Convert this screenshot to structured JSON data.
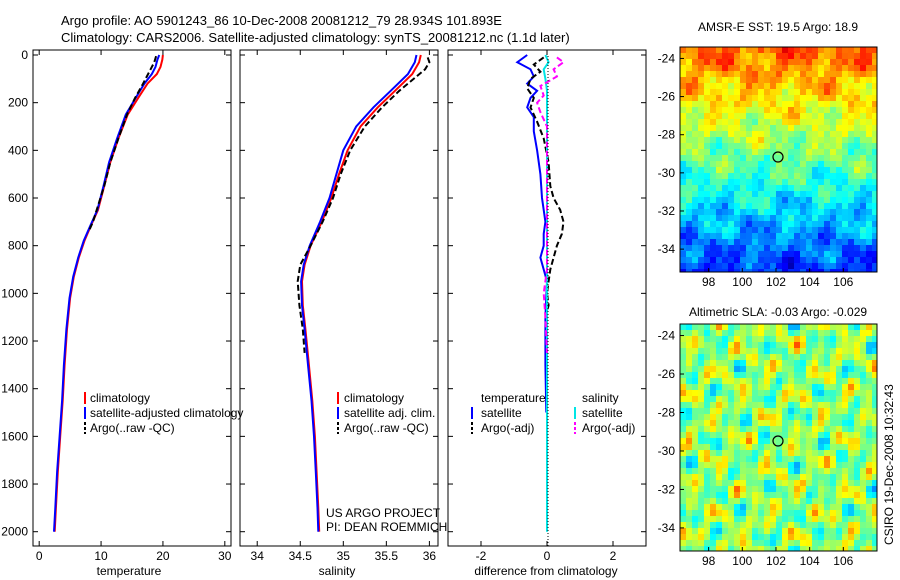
{
  "header": {
    "line1": "Argo profile: AO 5901243_86 10-Dec-2008 20081212_79 28.934S 101.893E",
    "line2": "Climatology: CARS2006. Satellite-adjusted climatology: synTS_20081212.nc (1.1d later)"
  },
  "colors": {
    "climatology": "#ff0000",
    "satellite": "#0000ff",
    "argo": "#000000",
    "salinity_satellite": "#00e5e5",
    "salinity_argo": "#ff00ff"
  },
  "chart_data": [
    {
      "type": "line",
      "xlabel": "temperature",
      "ylabel": "",
      "xlim": [
        -1,
        31
      ],
      "xticks": [
        0,
        10,
        20,
        30
      ],
      "ylim": [
        2060,
        0
      ],
      "yticks": [
        0,
        200,
        400,
        600,
        800,
        1000,
        1200,
        1400,
        1600,
        1800,
        2000
      ],
      "series": [
        {
          "name": "climatology",
          "color": "#ff0000",
          "style": "solid",
          "points": [
            [
              20,
              0
            ],
            [
              19.9,
              20
            ],
            [
              19.6,
              50
            ],
            [
              19.0,
              80
            ],
            [
              17.5,
              120
            ],
            [
              16.0,
              180
            ],
            [
              14.3,
              250
            ],
            [
              12.8,
              350
            ],
            [
              11.5,
              450
            ],
            [
              10.5,
              550
            ],
            [
              9.5,
              650
            ],
            [
              8.3,
              720
            ],
            [
              7.3,
              780
            ],
            [
              6.4,
              850
            ],
            [
              5.6,
              930
            ],
            [
              5.0,
              1020
            ],
            [
              4.5,
              1150
            ],
            [
              4.1,
              1300
            ],
            [
              3.8,
              1450
            ],
            [
              3.4,
              1600
            ],
            [
              3.0,
              1750
            ],
            [
              2.7,
              1900
            ],
            [
              2.5,
              2000
            ]
          ]
        },
        {
          "name": "satellite-adjusted climatology",
          "color": "#0000ff",
          "style": "solid",
          "points": [
            [
              19.4,
              0
            ],
            [
              19.1,
              20
            ],
            [
              18.8,
              50
            ],
            [
              18.2,
              80
            ],
            [
              17.0,
              120
            ],
            [
              15.6,
              180
            ],
            [
              14.0,
              250
            ],
            [
              12.6,
              350
            ],
            [
              11.3,
              450
            ],
            [
              10.4,
              550
            ],
            [
              9.4,
              650
            ],
            [
              8.2,
              720
            ],
            [
              7.2,
              780
            ],
            [
              6.3,
              850
            ],
            [
              5.5,
              930
            ],
            [
              4.9,
              1020
            ],
            [
              4.4,
              1150
            ],
            [
              4.0,
              1300
            ],
            [
              3.7,
              1450
            ],
            [
              3.3,
              1600
            ],
            [
              2.9,
              1750
            ],
            [
              2.6,
              1900
            ],
            [
              2.4,
              2000
            ]
          ]
        },
        {
          "name": "Argo(..raw -QC)",
          "color": "#000000",
          "style": "dash",
          "points": [
            [
              18.9,
              5
            ],
            [
              18.6,
              30
            ],
            [
              18.0,
              60
            ],
            [
              17.4,
              90
            ],
            [
              16.8,
              120
            ],
            [
              15.5,
              180
            ],
            [
              14.2,
              250
            ],
            [
              12.8,
              350
            ],
            [
              11.5,
              450
            ],
            [
              10.5,
              550
            ],
            [
              9.3,
              650
            ],
            [
              8.7,
              700
            ],
            [
              8.0,
              740
            ]
          ]
        }
      ],
      "legend": [
        "climatology",
        "satellite-adjusted climatology",
        "Argo(..raw -QC)"
      ]
    },
    {
      "type": "line",
      "xlabel": "salinity",
      "xlim": [
        33.8,
        36.1
      ],
      "xticks": [
        34,
        34.5,
        35,
        35.5,
        36
      ],
      "ylim": [
        2060,
        0
      ],
      "series": [
        {
          "name": "climatology",
          "color": "#ff0000",
          "style": "solid",
          "points": [
            [
              35.9,
              0
            ],
            [
              35.88,
              30
            ],
            [
              35.8,
              80
            ],
            [
              35.6,
              150
            ],
            [
              35.4,
              220
            ],
            [
              35.2,
              300
            ],
            [
              35.05,
              400
            ],
            [
              34.95,
              500
            ],
            [
              34.86,
              600
            ],
            [
              34.75,
              700
            ],
            [
              34.62,
              800
            ],
            [
              34.55,
              880
            ],
            [
              34.52,
              950
            ],
            [
              34.53,
              1050
            ],
            [
              34.56,
              1150
            ],
            [
              34.6,
              1300
            ],
            [
              34.64,
              1450
            ],
            [
              34.67,
              1600
            ],
            [
              34.69,
              1750
            ],
            [
              34.71,
              1900
            ],
            [
              34.72,
              2000
            ]
          ]
        },
        {
          "name": "satellite adj. clim.",
          "color": "#0000ff",
          "style": "solid",
          "points": [
            [
              35.85,
              0
            ],
            [
              35.83,
              30
            ],
            [
              35.75,
              80
            ],
            [
              35.55,
              150
            ],
            [
              35.35,
              220
            ],
            [
              35.15,
              300
            ],
            [
              35.0,
              400
            ],
            [
              34.92,
              500
            ],
            [
              34.84,
              600
            ],
            [
              34.73,
              700
            ],
            [
              34.61,
              800
            ],
            [
              34.54,
              880
            ],
            [
              34.51,
              950
            ],
            [
              34.52,
              1050
            ],
            [
              34.55,
              1150
            ],
            [
              34.59,
              1300
            ],
            [
              34.63,
              1450
            ],
            [
              34.66,
              1600
            ],
            [
              34.68,
              1750
            ],
            [
              34.7,
              1900
            ],
            [
              34.71,
              2000
            ]
          ]
        },
        {
          "name": "Argo(..raw -QC)",
          "color": "#000000",
          "style": "dash",
          "points": [
            [
              35.98,
              10
            ],
            [
              36.0,
              30
            ],
            [
              35.95,
              60
            ],
            [
              35.85,
              90
            ],
            [
              35.65,
              150
            ],
            [
              35.45,
              220
            ],
            [
              35.25,
              300
            ],
            [
              35.08,
              400
            ],
            [
              34.97,
              500
            ],
            [
              34.88,
              600
            ],
            [
              34.76,
              700
            ],
            [
              34.62,
              800
            ],
            [
              34.5,
              880
            ],
            [
              34.47,
              950
            ],
            [
              34.49,
              1050
            ],
            [
              34.53,
              1150
            ],
            [
              34.55,
              1250
            ]
          ]
        }
      ],
      "legend": [
        "climatology",
        "satellite adj. clim.",
        "Argo(..raw -QC)"
      ],
      "annotation": [
        "US ARGO PROJECT",
        "PI: DEAN ROEMMICH"
      ]
    },
    {
      "type": "line",
      "xlabel": "difference from climatology",
      "xlim": [
        -3,
        3
      ],
      "xticks": [
        -2,
        0,
        2
      ],
      "ylim": [
        2060,
        0
      ],
      "series": [
        {
          "name": "temperature satellite",
          "color": "#0000ff",
          "style": "solid",
          "points": [
            [
              -0.6,
              0
            ],
            [
              -0.9,
              30
            ],
            [
              -0.5,
              60
            ],
            [
              -0.4,
              90
            ],
            [
              -0.6,
              120
            ],
            [
              -0.3,
              150
            ],
            [
              -0.5,
              180
            ],
            [
              -0.6,
              220
            ],
            [
              -0.4,
              260
            ],
            [
              -0.4,
              320
            ],
            [
              -0.3,
              400
            ],
            [
              -0.2,
              500
            ],
            [
              -0.15,
              600
            ],
            [
              -0.1,
              650
            ],
            [
              -0.05,
              700
            ],
            [
              -0.1,
              750
            ],
            [
              -0.1,
              800
            ],
            [
              -0.2,
              850
            ],
            [
              -0.1,
              900
            ],
            [
              0,
              950
            ],
            [
              -0.05,
              1100
            ],
            [
              -0.05,
              1300
            ],
            [
              -0.02,
              1500
            ]
          ]
        },
        {
          "name": "temperature Argo(-adj)",
          "color": "#000000",
          "style": "dash",
          "points": [
            [
              -0.1,
              10
            ],
            [
              -0.4,
              40
            ],
            [
              -0.2,
              70
            ],
            [
              -0.5,
              100
            ],
            [
              -0.6,
              140
            ],
            [
              -0.4,
              180
            ],
            [
              -0.5,
              220
            ],
            [
              -0.3,
              280
            ],
            [
              -0.1,
              350
            ],
            [
              0.05,
              450
            ],
            [
              0.1,
              550
            ],
            [
              0.2,
              600
            ],
            [
              0.4,
              650
            ],
            [
              0.5,
              700
            ],
            [
              0.45,
              750
            ],
            [
              0.3,
              800
            ],
            [
              0.2,
              850
            ],
            [
              0.1,
              900
            ],
            [
              0.05,
              950
            ],
            [
              0.0,
              1000
            ],
            [
              0.05,
              1050
            ],
            [
              -0.05,
              1100
            ]
          ]
        },
        {
          "name": "salinity satellite",
          "color": "#00e5e5",
          "style": "solid",
          "points": [
            [
              -0.05,
              0
            ],
            [
              0.05,
              30
            ],
            [
              -0.1,
              60
            ],
            [
              -0.05,
              100
            ],
            [
              0.0,
              150
            ],
            [
              0.0,
              300
            ],
            [
              0.0,
              600
            ],
            [
              0.0,
              900
            ],
            [
              0.0,
              1200
            ],
            [
              0.0,
              1500
            ],
            [
              0.0,
              1800
            ],
            [
              0.0,
              2000
            ]
          ]
        },
        {
          "name": "salinity Argo(-adj)",
          "color": "#ff00ff",
          "style": "dash",
          "points": [
            [
              0.3,
              10
            ],
            [
              0.5,
              30
            ],
            [
              0.2,
              60
            ],
            [
              0.3,
              90
            ],
            [
              -0.2,
              130
            ],
            [
              -0.1,
              170
            ],
            [
              -0.3,
              200
            ],
            [
              -0.2,
              240
            ],
            [
              0.0,
              300
            ],
            [
              0.0,
              600
            ],
            [
              0.0,
              900
            ],
            [
              -0.1,
              1000
            ],
            [
              -0.05,
              1100
            ],
            [
              0.0,
              1250
            ]
          ]
        }
      ],
      "legend_left_title": "temperature",
      "legend_right_title": "salinity",
      "legend_left": [
        "satellite",
        "Argo(-adj)"
      ],
      "legend_right": [
        "satellite",
        "Argo(-adj)"
      ]
    },
    {
      "type": "heatmap",
      "title": "AMSR-E SST: 19.5 Argo: 18.9",
      "xticks": [
        98,
        100,
        102,
        104,
        106
      ],
      "yticks": [
        -24,
        -26,
        -28,
        -30,
        -32,
        -34
      ],
      "xlim": [
        96.3,
        108
      ],
      "ylim": [
        -35.2,
        -23.4
      ],
      "marker": [
        101.893,
        -28.934
      ]
    },
    {
      "type": "heatmap",
      "title": "Altimetric SLA: -0.03 Argo: -0.029",
      "xticks": [
        98,
        100,
        102,
        104,
        106
      ],
      "yticks": [
        -24,
        -26,
        -28,
        -30,
        -32,
        -34
      ],
      "xlim": [
        96.3,
        108
      ],
      "ylim": [
        -35.2,
        -23.4
      ],
      "marker": [
        101.893,
        -28.934
      ]
    }
  ],
  "credit": "CSIRO 19-Dec-2008 10:32:43"
}
